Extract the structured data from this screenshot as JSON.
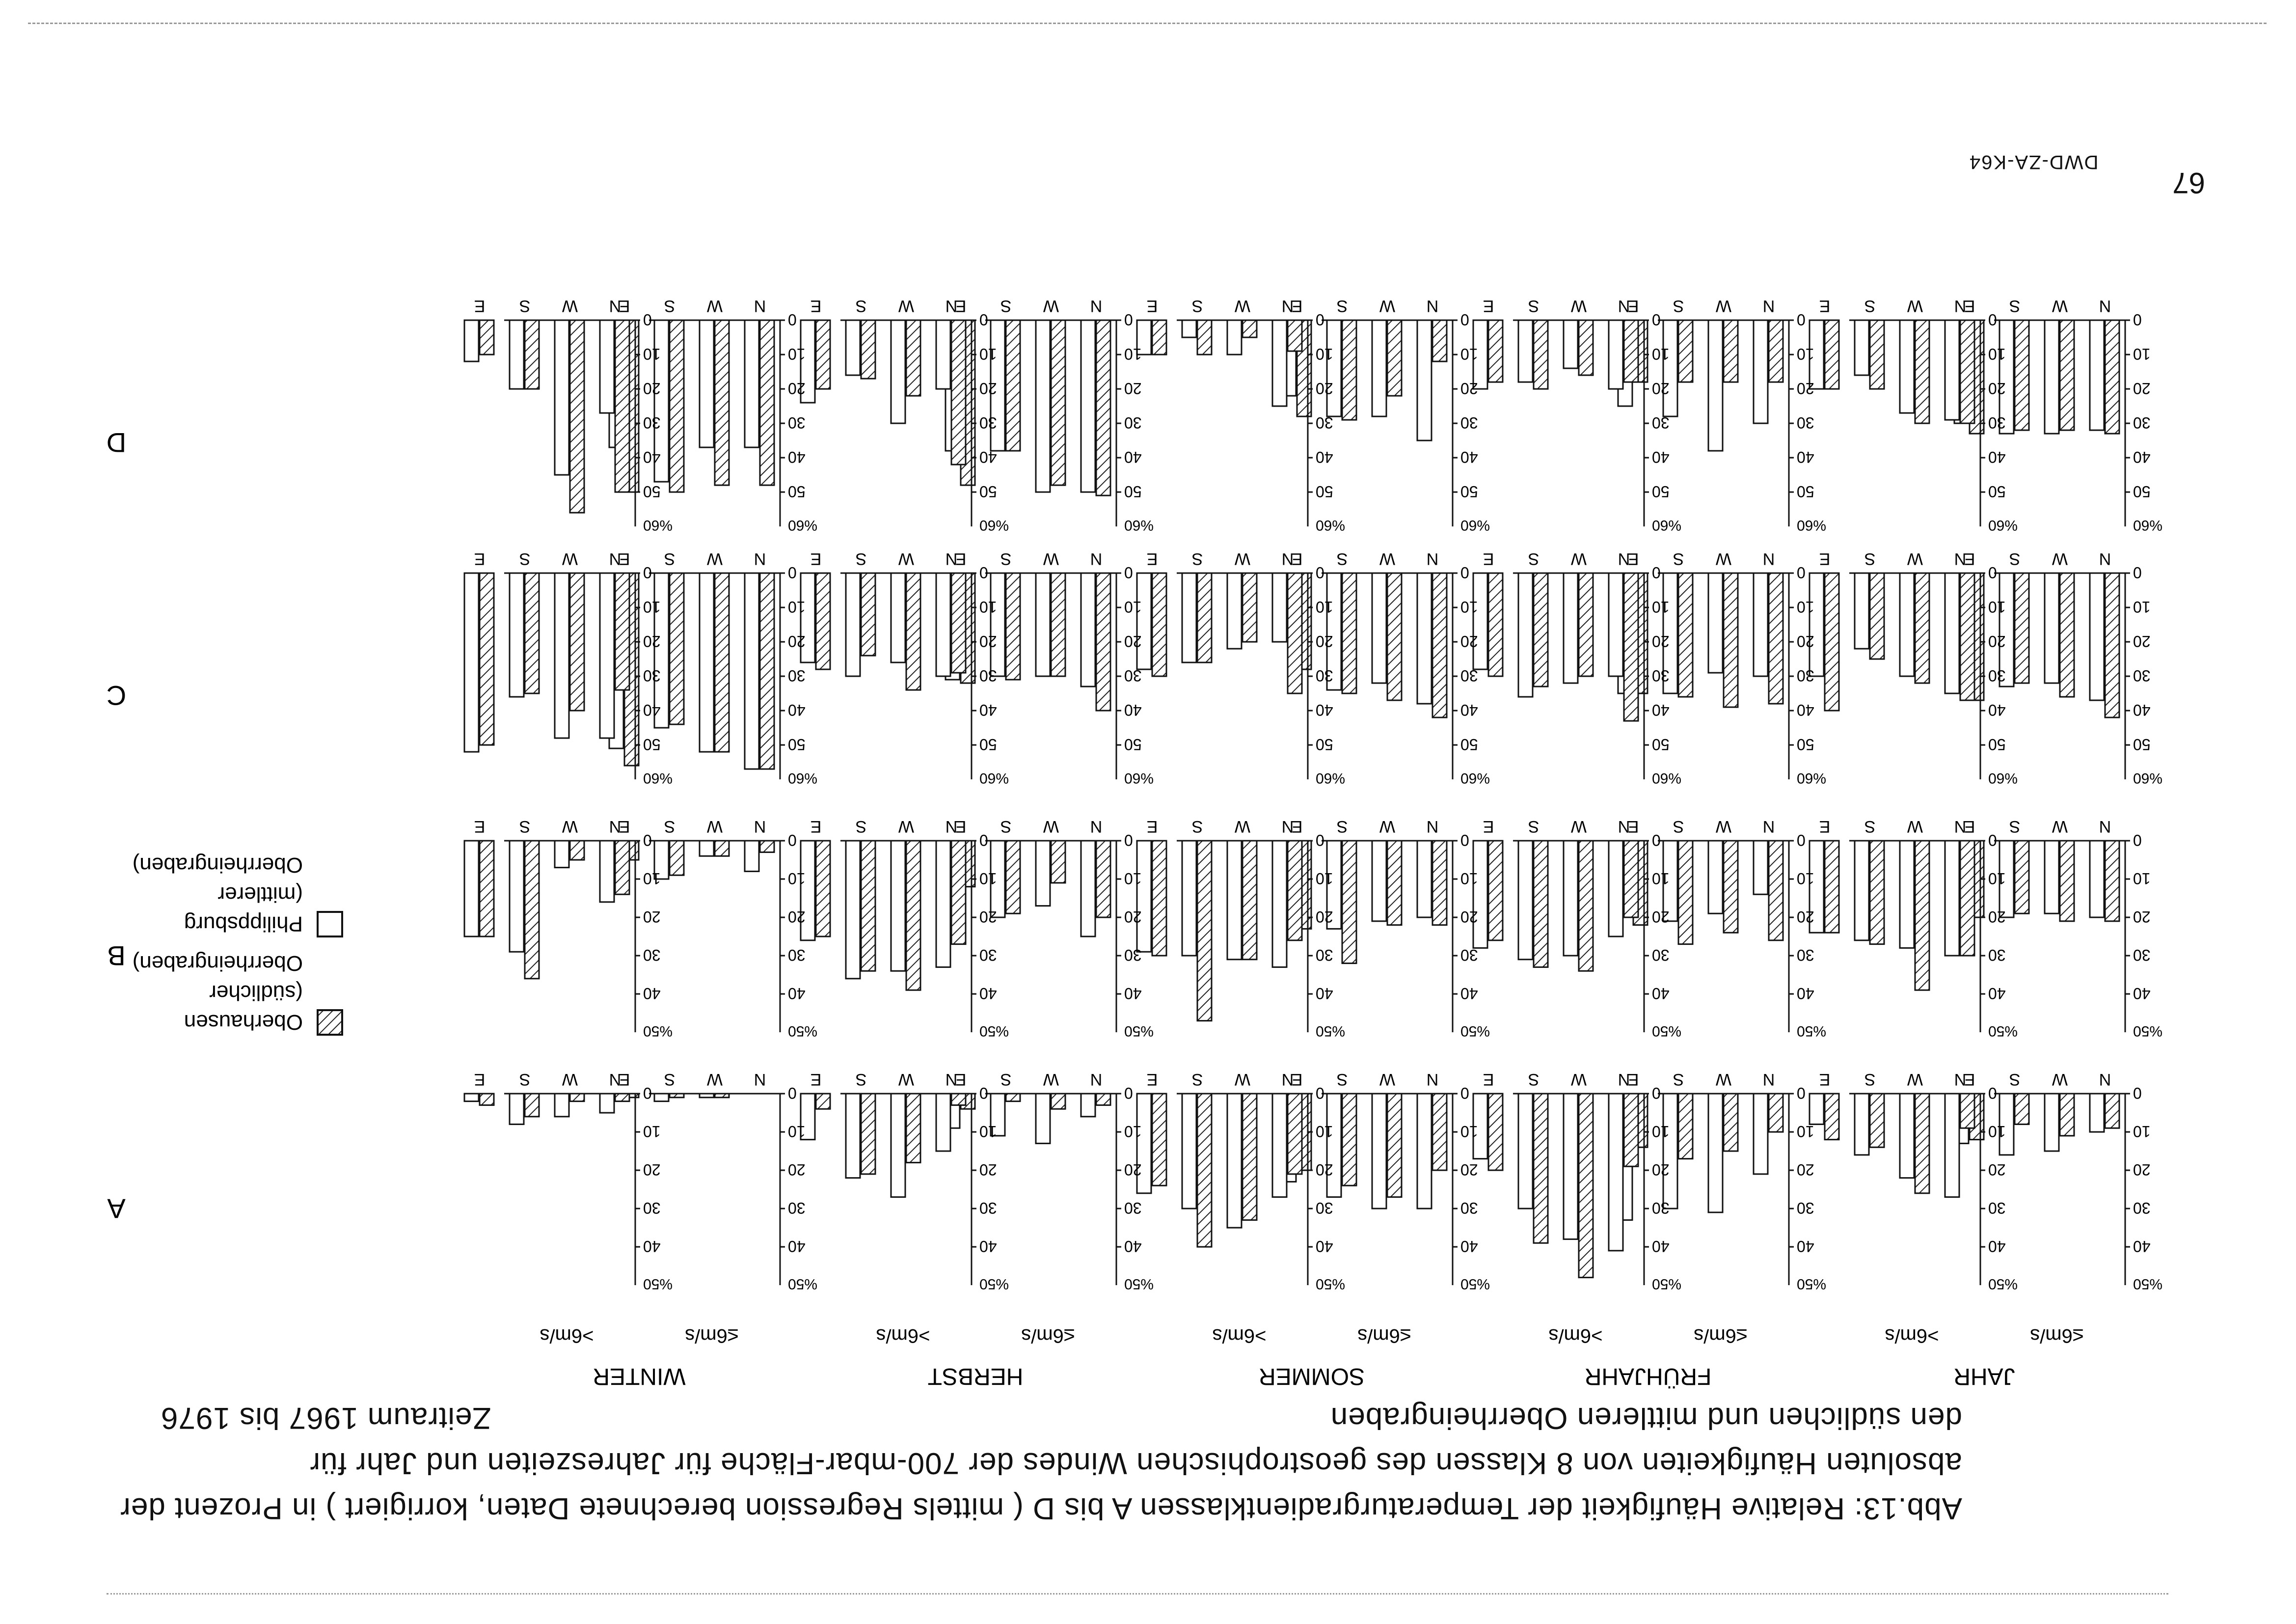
{
  "page_number": "67",
  "caption": {
    "line1": "Abb.13: Relative Häufigkeit der Temperaturgradientklassen A bis D ( mittels Regression berechnete Daten, korrigiert ) in Prozent der",
    "line2": "absoluten Häufigkeiten von 8 Klassen des geostrophischen Windes der 700-mbar-Fläche für Jahreszeiten und Jahr für",
    "line3": "den südlichen und mittleren Oberrheingraben",
    "period": "Zeitraum 1967 bis 1976"
  },
  "source_tag": "DWD-ZA-K64",
  "legend": {
    "oberhausen": [
      "Oberhausen",
      "(südlicher",
      "Oberrheingraben)"
    ],
    "philippsburg": [
      "Philippsburg",
      "(mittlerer",
      "Oberrheingraben)"
    ]
  },
  "seasons": [
    "JAHR",
    "FRÜHJAHR",
    "SOMMER",
    "HERBST",
    "WINTER"
  ],
  "speed_labels": [
    "≤6m/s",
    ">6m/s"
  ],
  "classes": [
    "A",
    "B",
    "C",
    "D"
  ],
  "direction_labels": [
    "N",
    "W",
    "S",
    "E"
  ],
  "unit_label": "%",
  "colors": {
    "ink": "#111111",
    "hatch": "#222222",
    "paper": "#ffffff"
  },
  "chart_data": {
    "type": "bar",
    "description_of_structure": "4 classes (rows A-D) x 5 seasons x 2 wind-speed groups; each group has 4 directions (N, W, S, E) with paired bars: hatched = Oberhausen, open = Philippsburg. Values in percent.",
    "series_names": [
      "Oberhausen",
      "Philippsburg"
    ],
    "panels": [
      {
        "class": "A",
        "season": "JAHR",
        "speed": "≤6m/s",
        "ylim": [
          0,
          50
        ],
        "yticks": [
          0,
          10,
          20,
          30,
          40
        ],
        "oberhausen": [
          9,
          11,
          8,
          12
        ],
        "philippsburg": [
          10,
          15,
          16,
          13
        ]
      },
      {
        "class": "A",
        "season": "JAHR",
        "speed": ">6m/s",
        "ylim": [
          0,
          50
        ],
        "yticks": [
          0,
          10,
          20,
          30,
          40
        ],
        "oberhausen": [
          9,
          26,
          14,
          12
        ],
        "philippsburg": [
          27,
          22,
          16,
          8
        ]
      },
      {
        "class": "A",
        "season": "FRÜHJAHR",
        "speed": "≤6m/s",
        "ylim": [
          0,
          50
        ],
        "yticks": [
          0,
          10,
          20,
          30,
          40
        ],
        "oberhausen": [
          10,
          15,
          17,
          14
        ],
        "philippsburg": [
          21,
          31,
          30,
          33
        ]
      },
      {
        "class": "A",
        "season": "FRÜHJAHR",
        "speed": ">6m/s",
        "ylim": [
          0,
          50
        ],
        "yticks": [
          0,
          10,
          20,
          30,
          40
        ],
        "oberhausen": [
          19,
          48,
          39,
          20
        ],
        "philippsburg": [
          41,
          38,
          30,
          17
        ]
      },
      {
        "class": "A",
        "season": "SOMMER",
        "speed": "≤6m/s",
        "ylim": [
          0,
          50
        ],
        "yticks": [
          0,
          10,
          20,
          30,
          40
        ],
        "oberhausen": [
          20,
          27,
          24,
          20
        ],
        "philippsburg": [
          30,
          30,
          27,
          23
        ]
      },
      {
        "class": "A",
        "season": "SOMMER",
        "speed": ">6m/s",
        "ylim": [
          0,
          50
        ],
        "yticks": [
          0,
          10,
          20,
          30,
          40
        ],
        "oberhausen": [
          21,
          33,
          40,
          24
        ],
        "philippsburg": [
          27,
          35,
          30,
          26
        ]
      },
      {
        "class": "A",
        "season": "HERBST",
        "speed": "≤6m/s",
        "ylim": [
          0,
          50
        ],
        "yticks": [
          0,
          10,
          20,
          30,
          40
        ],
        "oberhausen": [
          3,
          4,
          2,
          4
        ],
        "philippsburg": [
          6,
          13,
          11,
          9
        ]
      },
      {
        "class": "A",
        "season": "HERBST",
        "speed": ">6m/s",
        "ylim": [
          0,
          50
        ],
        "yticks": [
          0,
          10,
          20,
          30,
          40
        ],
        "oberhausen": [
          3,
          18,
          21,
          4
        ],
        "philippsburg": [
          15,
          27,
          22,
          12
        ]
      },
      {
        "class": "A",
        "season": "WINTER",
        "speed": "≤6m/s",
        "ylim": [
          0,
          50
        ],
        "yticks": [
          0,
          10,
          20,
          30,
          40
        ],
        "oberhausen": [
          0,
          1,
          1,
          1
        ],
        "philippsburg": [
          0,
          1,
          2,
          1
        ]
      },
      {
        "class": "A",
        "season": "WINTER",
        "speed": ">6m/s",
        "ylim": [
          0,
          50
        ],
        "yticks": [
          0,
          10,
          20,
          30,
          40
        ],
        "oberhausen": [
          2,
          2,
          6,
          3
        ],
        "philippsburg": [
          5,
          6,
          8,
          2
        ]
      },
      {
        "class": "B",
        "season": "JAHR",
        "speed": "≤6m/s",
        "ylim": [
          0,
          50
        ],
        "yticks": [
          0,
          10,
          20,
          30,
          40
        ],
        "oberhausen": [
          21,
          21,
          19,
          20
        ],
        "philippsburg": [
          20,
          19,
          20,
          20
        ]
      },
      {
        "class": "B",
        "season": "JAHR",
        "speed": ">6m/s",
        "ylim": [
          0,
          50
        ],
        "yticks": [
          0,
          10,
          20,
          30,
          40
        ],
        "oberhausen": [
          30,
          39,
          27,
          24
        ],
        "philippsburg": [
          30,
          28,
          26,
          24
        ]
      },
      {
        "class": "B",
        "season": "FRÜHJAHR",
        "speed": "≤6m/s",
        "ylim": [
          0,
          50
        ],
        "yticks": [
          0,
          10,
          20,
          30,
          40
        ],
        "oberhausen": [
          26,
          24,
          27,
          22
        ],
        "philippsburg": [
          14,
          19,
          21,
          19
        ]
      },
      {
        "class": "B",
        "season": "FRÜHJAHR",
        "speed": ">6m/s",
        "ylim": [
          0,
          50
        ],
        "yticks": [
          0,
          10,
          20,
          30,
          40
        ],
        "oberhausen": [
          20,
          34,
          33,
          26
        ],
        "philippsburg": [
          25,
          30,
          31,
          28
        ]
      },
      {
        "class": "B",
        "season": "SOMMER",
        "speed": "≤6m/s",
        "ylim": [
          0,
          50
        ],
        "yticks": [
          0,
          10,
          20,
          30,
          40
        ],
        "oberhausen": [
          22,
          22,
          32,
          23
        ],
        "philippsburg": [
          20,
          21,
          23,
          23
        ]
      },
      {
        "class": "B",
        "season": "SOMMER",
        "speed": ">6m/s",
        "ylim": [
          0,
          50
        ],
        "yticks": [
          0,
          10,
          20,
          30,
          40
        ],
        "oberhausen": [
          26,
          31,
          47,
          30
        ],
        "philippsburg": [
          33,
          31,
          30,
          29
        ]
      },
      {
        "class": "B",
        "season": "HERBST",
        "speed": "≤6m/s",
        "ylim": [
          0,
          50
        ],
        "yticks": [
          0,
          10,
          20,
          30,
          40
        ],
        "oberhausen": [
          20,
          11,
          19,
          12
        ],
        "philippsburg": [
          25,
          17,
          20,
          10
        ]
      },
      {
        "class": "B",
        "season": "HERBST",
        "speed": ">6m/s",
        "ylim": [
          0,
          50
        ],
        "yticks": [
          0,
          10,
          20,
          30,
          40
        ],
        "oberhausen": [
          27,
          39,
          34,
          25
        ],
        "philippsburg": [
          33,
          34,
          36,
          26
        ]
      },
      {
        "class": "B",
        "season": "WINTER",
        "speed": "≤6m/s",
        "ylim": [
          0,
          50
        ],
        "yticks": [
          0,
          10,
          20,
          30,
          40
        ],
        "oberhausen": [
          3,
          4,
          9,
          5
        ],
        "philippsburg": [
          8,
          4,
          10,
          3
        ]
      },
      {
        "class": "B",
        "season": "WINTER",
        "speed": ">6m/s",
        "ylim": [
          0,
          50
        ],
        "yticks": [
          0,
          10,
          20,
          30,
          40
        ],
        "oberhausen": [
          14,
          5,
          36,
          25
        ],
        "philippsburg": [
          16,
          7,
          29,
          25
        ]
      },
      {
        "class": "C",
        "season": "JAHR",
        "speed": "≤6m/s",
        "ylim": [
          0,
          60
        ],
        "yticks": [
          0,
          10,
          20,
          30,
          40,
          50
        ],
        "oberhausen": [
          42,
          36,
          32,
          37
        ],
        "philippsburg": [
          37,
          32,
          33,
          30
        ]
      },
      {
        "class": "C",
        "season": "JAHR",
        "speed": ">6m/s",
        "ylim": [
          0,
          60
        ],
        "yticks": [
          0,
          10,
          20,
          30,
          40,
          50
        ],
        "oberhausen": [
          37,
          32,
          25,
          40
        ],
        "philippsburg": [
          35,
          30,
          22,
          30
        ]
      },
      {
        "class": "C",
        "season": "FRÜHJAHR",
        "speed": "≤6m/s",
        "ylim": [
          0,
          60
        ],
        "yticks": [
          0,
          10,
          20,
          30,
          40,
          50
        ],
        "oberhausen": [
          38,
          39,
          36,
          35
        ],
        "philippsburg": [
          30,
          29,
          35,
          35
        ]
      },
      {
        "class": "C",
        "season": "FRÜHJAHR",
        "speed": ">6m/s",
        "ylim": [
          0,
          60
        ],
        "yticks": [
          0,
          10,
          20,
          30,
          40,
          50
        ],
        "oberhausen": [
          43,
          30,
          33,
          30
        ],
        "philippsburg": [
          30,
          32,
          36,
          28
        ]
      },
      {
        "class": "C",
        "season": "SOMMER",
        "speed": "≤6m/s",
        "ylim": [
          0,
          60
        ],
        "yticks": [
          0,
          10,
          20,
          30,
          40,
          50
        ],
        "oberhausen": [
          42,
          37,
          35,
          28
        ],
        "philippsburg": [
          38,
          32,
          34,
          20
        ]
      },
      {
        "class": "C",
        "season": "SOMMER",
        "speed": ">6m/s",
        "ylim": [
          0,
          60
        ],
        "yticks": [
          0,
          10,
          20,
          30,
          40,
          50
        ],
        "oberhausen": [
          35,
          20,
          26,
          30
        ],
        "philippsburg": [
          20,
          22,
          26,
          28
        ]
      },
      {
        "class": "C",
        "season": "HERBST",
        "speed": "≤6m/s",
        "ylim": [
          0,
          60
        ],
        "yticks": [
          0,
          10,
          20,
          30,
          40,
          50
        ],
        "oberhausen": [
          40,
          30,
          31,
          32
        ],
        "philippsburg": [
          33,
          30,
          30,
          31
        ]
      },
      {
        "class": "C",
        "season": "HERBST",
        "speed": ">6m/s",
        "ylim": [
          0,
          60
        ],
        "yticks": [
          0,
          10,
          20,
          30,
          40,
          50
        ],
        "oberhausen": [
          29,
          34,
          24,
          28
        ],
        "philippsburg": [
          30,
          26,
          30,
          26
        ]
      },
      {
        "class": "C",
        "season": "WINTER",
        "speed": "≤6m/s",
        "ylim": [
          0,
          60
        ],
        "yticks": [
          0,
          10,
          20,
          30,
          40,
          50
        ],
        "oberhausen": [
          57,
          52,
          44,
          56
        ],
        "philippsburg": [
          57,
          52,
          45,
          51
        ]
      },
      {
        "class": "C",
        "season": "WINTER",
        "speed": ">6m/s",
        "ylim": [
          0,
          60
        ],
        "yticks": [
          0,
          10,
          20,
          30,
          40,
          50
        ],
        "oberhausen": [
          34,
          40,
          35,
          50
        ],
        "philippsburg": [
          48,
          48,
          36,
          52
        ]
      },
      {
        "class": "D",
        "season": "JAHR",
        "speed": "≤6m/s",
        "ylim": [
          0,
          60
        ],
        "yticks": [
          0,
          10,
          20,
          30,
          40,
          50
        ],
        "oberhausen": [
          33,
          32,
          32,
          33
        ],
        "philippsburg": [
          32,
          33,
          33,
          30
        ]
      },
      {
        "class": "D",
        "season": "JAHR",
        "speed": ">6m/s",
        "ylim": [
          0,
          60
        ],
        "yticks": [
          0,
          10,
          20,
          30,
          40,
          50
        ],
        "oberhausen": [
          30,
          30,
          20,
          20
        ],
        "philippsburg": [
          29,
          27,
          16,
          20
        ]
      },
      {
        "class": "D",
        "season": "FRÜHJAHR",
        "speed": "≤6m/s",
        "ylim": [
          0,
          60
        ],
        "yticks": [
          0,
          10,
          20,
          30,
          40,
          50
        ],
        "oberhausen": [
          18,
          18,
          18,
          18
        ],
        "philippsburg": [
          30,
          38,
          28,
          25
        ]
      },
      {
        "class": "D",
        "season": "FRÜHJAHR",
        "speed": ">6m/s",
        "ylim": [
          0,
          60
        ],
        "yticks": [
          0,
          10,
          20,
          30,
          40,
          50
        ],
        "oberhausen": [
          18,
          16,
          20,
          18
        ],
        "philippsburg": [
          20,
          14,
          18,
          20
        ]
      },
      {
        "class": "D",
        "season": "SOMMER",
        "speed": "≤6m/s",
        "ylim": [
          0,
          60
        ],
        "yticks": [
          0,
          10,
          20,
          30,
          40,
          50
        ],
        "oberhausen": [
          12,
          22,
          29,
          28
        ],
        "philippsburg": [
          35,
          28,
          28,
          22
        ]
      },
      {
        "class": "D",
        "season": "SOMMER",
        "speed": ">6m/s",
        "ylim": [
          0,
          60
        ],
        "yticks": [
          0,
          10,
          20,
          30,
          40,
          50
        ],
        "oberhausen": [
          9,
          5,
          10,
          10
        ],
        "philippsburg": [
          25,
          10,
          5,
          10
        ]
      },
      {
        "class": "D",
        "season": "HERBST",
        "speed": "≤6m/s",
        "ylim": [
          0,
          60
        ],
        "yticks": [
          0,
          10,
          20,
          30,
          40,
          50
        ],
        "oberhausen": [
          51,
          48,
          38,
          48
        ],
        "philippsburg": [
          50,
          50,
          38,
          38
        ]
      },
      {
        "class": "D",
        "season": "HERBST",
        "speed": ">6m/s",
        "ylim": [
          0,
          60
        ],
        "yticks": [
          0,
          10,
          20,
          30,
          40,
          50
        ],
        "oberhausen": [
          42,
          22,
          17,
          20
        ],
        "philippsburg": [
          20,
          30,
          16,
          24
        ]
      },
      {
        "class": "D",
        "season": "WINTER",
        "speed": "≤6m/s",
        "ylim": [
          0,
          60
        ],
        "yticks": [
          0,
          10,
          20,
          30,
          40,
          50
        ],
        "oberhausen": [
          48,
          48,
          50,
          50
        ],
        "philippsburg": [
          37,
          37,
          47,
          37
        ]
      },
      {
        "class": "D",
        "season": "WINTER",
        "speed": ">6m/s",
        "ylim": [
          0,
          60
        ],
        "yticks": [
          0,
          10,
          20,
          30,
          40,
          50
        ],
        "oberhausen": [
          50,
          56,
          20,
          10
        ],
        "philippsburg": [
          27,
          45,
          20,
          12
        ]
      }
    ]
  }
}
